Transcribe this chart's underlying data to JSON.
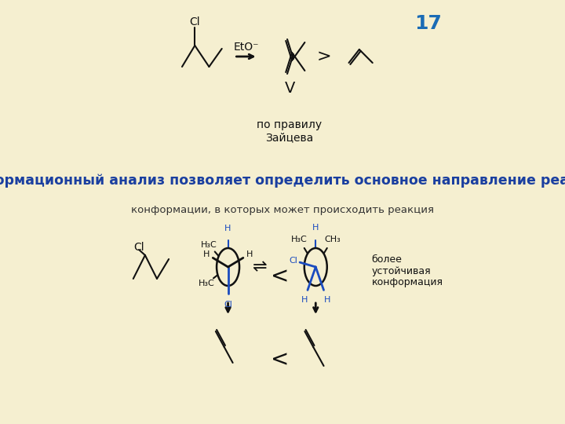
{
  "bg_color": "#f5efd0",
  "title_number": "17",
  "title_number_color": "#1a6bb5",
  "title_number_fontsize": 18,
  "main_text": "Конформационный анализ позволяет определить основное направление реакции:",
  "main_text_color": "#1a3fa0",
  "main_text_fontsize": 12.5,
  "sub_text": "конформации, в которых может происходить реакция",
  "sub_text_color": "#333333",
  "sub_text_fontsize": 9.5,
  "zaitsev_text": "по правилу\nЗайцева",
  "eto_label": "EtO⁻",
  "line_color": "#111111",
  "blue_color": "#1a4bbf",
  "less_than": "<",
  "greater_than": ">",
  "equilibrium": "⇌",
  "more_stable_text": "более\nустойчивая\nконформация"
}
